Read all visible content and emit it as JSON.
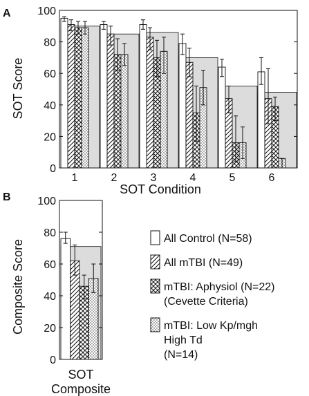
{
  "chart_data": [
    {
      "panel": "A",
      "type": "bar",
      "xlabel": "SOT Condition",
      "ylabel": "SOT Score",
      "ylim": [
        0,
        100
      ],
      "yticks": [
        0,
        20,
        40,
        60,
        80,
        100
      ],
      "categories": [
        "1",
        "2",
        "3",
        "4",
        "5",
        "6"
      ],
      "background": [
        90,
        85,
        86,
        70,
        52,
        48
      ],
      "series": [
        {
          "name": "All Control (N=58)",
          "pattern": "white",
          "values": [
            95,
            91,
            91,
            79,
            64,
            61
          ],
          "err_low": [
            93,
            88,
            88,
            72,
            58,
            53
          ],
          "err_high": [
            96,
            93,
            94,
            85,
            69,
            70
          ]
        },
        {
          "name": "All mTBI (N=49)",
          "pattern": "hatch",
          "values": [
            91,
            85,
            83,
            67,
            44,
            44
          ],
          "err_low": [
            87,
            78,
            75,
            58,
            35,
            28
          ],
          "err_high": [
            94,
            90,
            89,
            76,
            52,
            63
          ]
        },
        {
          "name": "mTBI: Aphysiol (N=22) (Cevette Criteria)",
          "pattern": "cross",
          "values": [
            89,
            72,
            70,
            35,
            16,
            39
          ],
          "err_low": [
            85,
            62,
            58,
            17,
            4,
            30
          ],
          "err_high": [
            93,
            82,
            81,
            52,
            33,
            45
          ]
        },
        {
          "name": "mTBI: Low Kp/mgh High Td (N=14)",
          "pattern": "dots",
          "values": [
            89,
            72,
            74,
            51,
            16,
            6
          ],
          "err_low": [
            85,
            65,
            60,
            40,
            6,
            0
          ],
          "err_high": [
            93,
            79,
            83,
            62,
            26,
            6
          ]
        }
      ]
    },
    {
      "panel": "B",
      "type": "bar",
      "xlabel": "SOT Composite",
      "ylabel": "Composite Score",
      "ylim": [
        0,
        100
      ],
      "yticks": [
        0,
        20,
        40,
        60,
        80,
        100
      ],
      "categories": [
        ""
      ],
      "background": [
        71
      ],
      "series": [
        {
          "name": "All Control (N=58)",
          "pattern": "white",
          "values": [
            76
          ],
          "err_low": [
            73
          ],
          "err_high": [
            80
          ]
        },
        {
          "name": "All mTBI (N=49)",
          "pattern": "hatch",
          "values": [
            62
          ],
          "err_low": [
            53
          ],
          "err_high": [
            72
          ]
        },
        {
          "name": "mTBI: Aphysiol (N=22) (Cevette Criteria)",
          "pattern": "cross",
          "values": [
            46
          ],
          "err_low": [
            38
          ],
          "err_high": [
            53
          ]
        },
        {
          "name": "mTBI: Low Kp/mgh High Td (N=14)",
          "pattern": "dots",
          "values": [
            51
          ],
          "err_low": [
            42
          ],
          "err_high": [
            60
          ]
        }
      ]
    }
  ],
  "labels": {
    "panel_a": "A",
    "panel_b": "B",
    "xlabel_a": "SOT Condition",
    "ylabel_a": "SOT Score",
    "xlabel_b_line1": "SOT",
    "xlabel_b_line2": "Composite",
    "ylabel_b": "Composite Score"
  },
  "legend": [
    {
      "pattern": "white",
      "lines": [
        "All Control (N=58)"
      ]
    },
    {
      "pattern": "hatch",
      "lines": [
        "All mTBI (N=49)"
      ]
    },
    {
      "pattern": "cross",
      "lines": [
        "mTBI: Aphysiol (N=22)",
        "(Cevette Criteria)"
      ]
    },
    {
      "pattern": "dots",
      "lines": [
        "mTBI: Low Kp/mgh",
        "High Td",
        "(N=14)"
      ]
    }
  ],
  "colors": {
    "background_bar": "#dcdcdc",
    "stroke": "#111111"
  }
}
